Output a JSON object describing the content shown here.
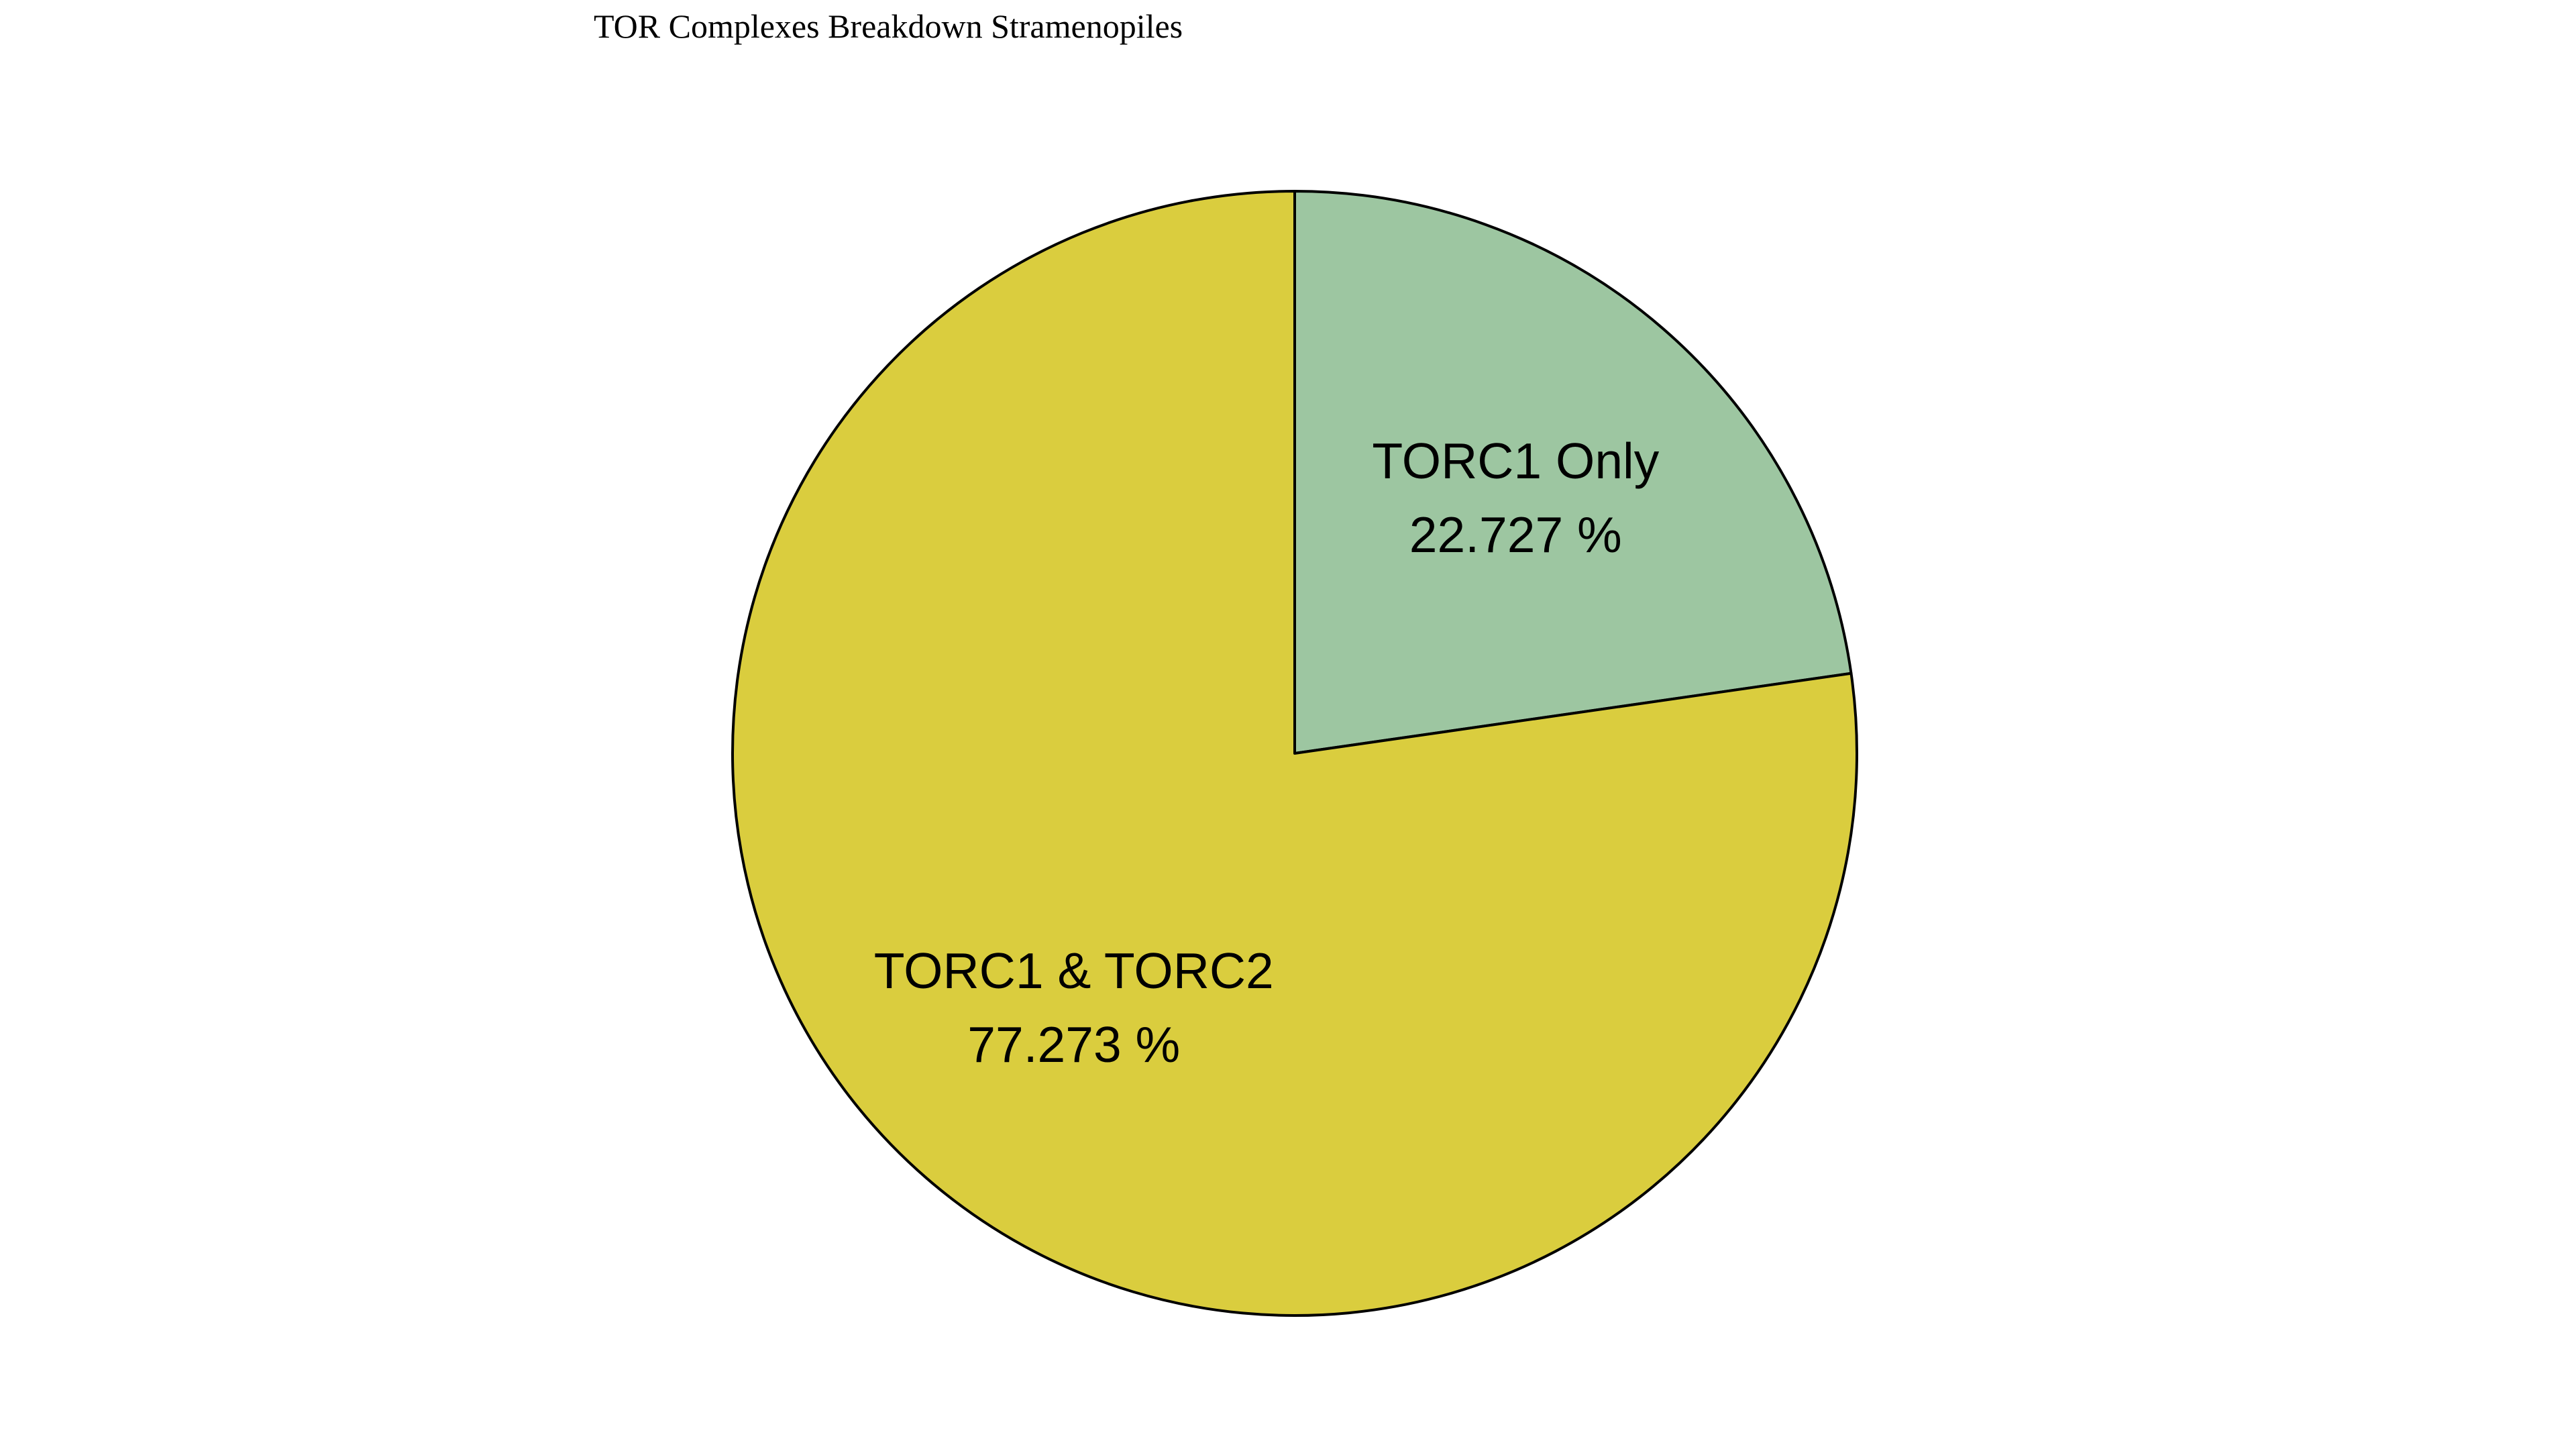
{
  "chart_data": {
    "type": "pie",
    "title": "TOR Complexes Breakdown Stramenopiles",
    "slices": [
      {
        "label": "TORC1 Only",
        "value": 22.727,
        "value_text": "22.727 %",
        "color": "#9DC6A1"
      },
      {
        "label": "TORC1 & TORC2",
        "value": 77.273,
        "value_text": "77.273 %",
        "color": "#DACD3E"
      }
    ],
    "start_angle": "12 o'clock",
    "direction": "clockwise",
    "edge_color": "#000000"
  }
}
